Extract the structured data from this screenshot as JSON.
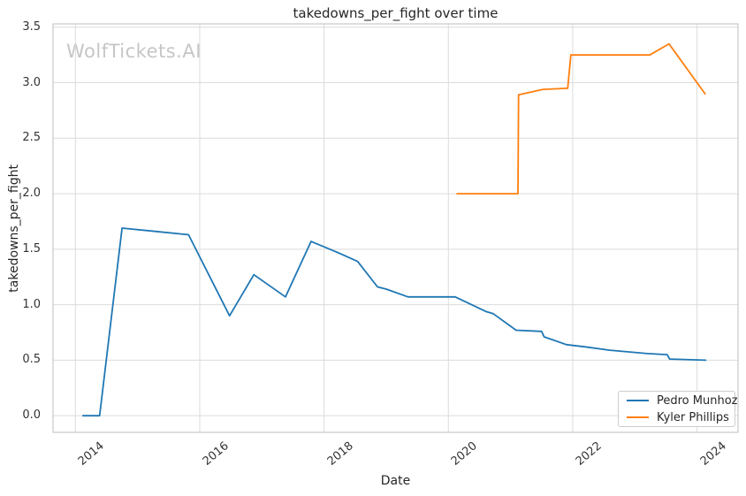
{
  "chart_data": {
    "type": "line",
    "title": "takedowns_per_fight over time",
    "xlabel": "Date",
    "ylabel": "takedowns_per_fight",
    "watermark": "WolfTickets.AI",
    "x_tick_labels": [
      "2014",
      "2016",
      "2018",
      "2020",
      "2022",
      "2024"
    ],
    "y_tick_labels": [
      "0.0",
      "0.5",
      "1.0",
      "1.5",
      "2.0",
      "2.5",
      "3.0",
      "3.5"
    ],
    "xlim": [
      2013.64,
      2024.66
    ],
    "ylim": [
      -0.15,
      3.53
    ],
    "grid": true,
    "grid_color": "#dcdcdc",
    "frame_color": "#c9c9c9",
    "legend_position": "lower right",
    "series": [
      {
        "name": "Pedro Munhoz",
        "color": "#1f77b4",
        "x": [
          2014.12,
          2014.39,
          2014.75,
          2015.3,
          2015.82,
          2016.48,
          2016.87,
          2017.38,
          2017.79,
          2018.18,
          2018.54,
          2018.86,
          2019.0,
          2019.35,
          2020.11,
          2020.6,
          2020.72,
          2021.09,
          2021.5,
          2021.54,
          2021.9,
          2022.2,
          2022.6,
          2023.2,
          2023.52,
          2023.56,
          2024.14
        ],
        "y": [
          0.0,
          0.0,
          1.69,
          1.66,
          1.63,
          0.9,
          1.27,
          1.07,
          1.57,
          1.48,
          1.39,
          1.16,
          1.14,
          1.07,
          1.07,
          0.94,
          0.92,
          0.77,
          0.76,
          0.71,
          0.64,
          0.62,
          0.59,
          0.56,
          0.55,
          0.51,
          0.5
        ]
      },
      {
        "name": "Kyler Phillips",
        "color": "#ff7f0e",
        "x": [
          2020.14,
          2021.12,
          2021.13,
          2021.52,
          2021.92,
          2021.97,
          2023.24,
          2023.55,
          2024.13
        ],
        "y": [
          2.0,
          2.0,
          2.89,
          2.94,
          2.95,
          3.25,
          3.25,
          3.35,
          2.9
        ]
      }
    ]
  }
}
